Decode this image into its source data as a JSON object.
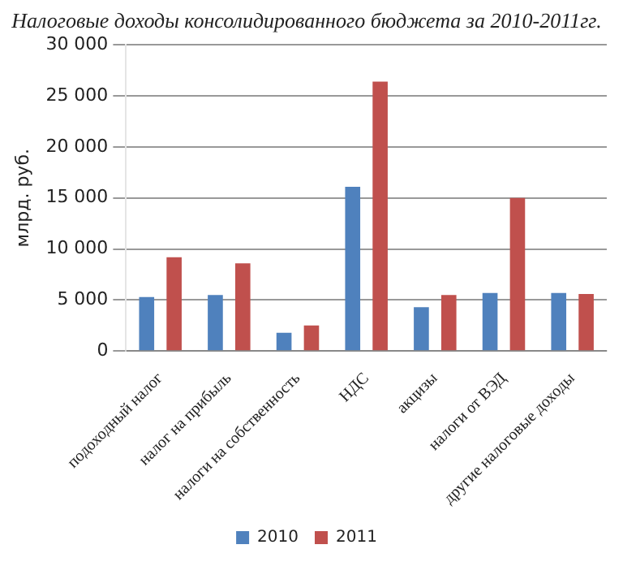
{
  "chart_data": {
    "type": "bar",
    "title": "Налоговые доходы консолидированного бюджета за 2010-2011гг.",
    "ylabel": "млрд. руб.",
    "categories": [
      "подоходный налог",
      "налог на прибыль",
      "налоги на собственность",
      "НДС",
      "акцизы",
      "налоги от ВЭД",
      "другие налоговые доходы"
    ],
    "series": [
      {
        "name": "2010",
        "color": "#4f81bd",
        "values": [
          5300,
          5500,
          1800,
          16100,
          4300,
          5700,
          5700
        ]
      },
      {
        "name": "2011",
        "color": "#c0504d",
        "values": [
          9200,
          8600,
          2500,
          26400,
          5500,
          15000,
          5600
        ]
      }
    ],
    "ylim": [
      0,
      30000
    ],
    "yticks": [
      0,
      {
        "value": 5000,
        "label": "5 000"
      },
      {
        "value": 10000,
        "label": "10 000"
      },
      {
        "value": 15000,
        "label": "15 000"
      },
      {
        "value": 20000,
        "label": "20 000"
      },
      {
        "value": 25000,
        "label": "25 000"
      },
      {
        "value": 30000,
        "label": "30 000"
      }
    ],
    "grid": "y",
    "legend": "bottom"
  }
}
